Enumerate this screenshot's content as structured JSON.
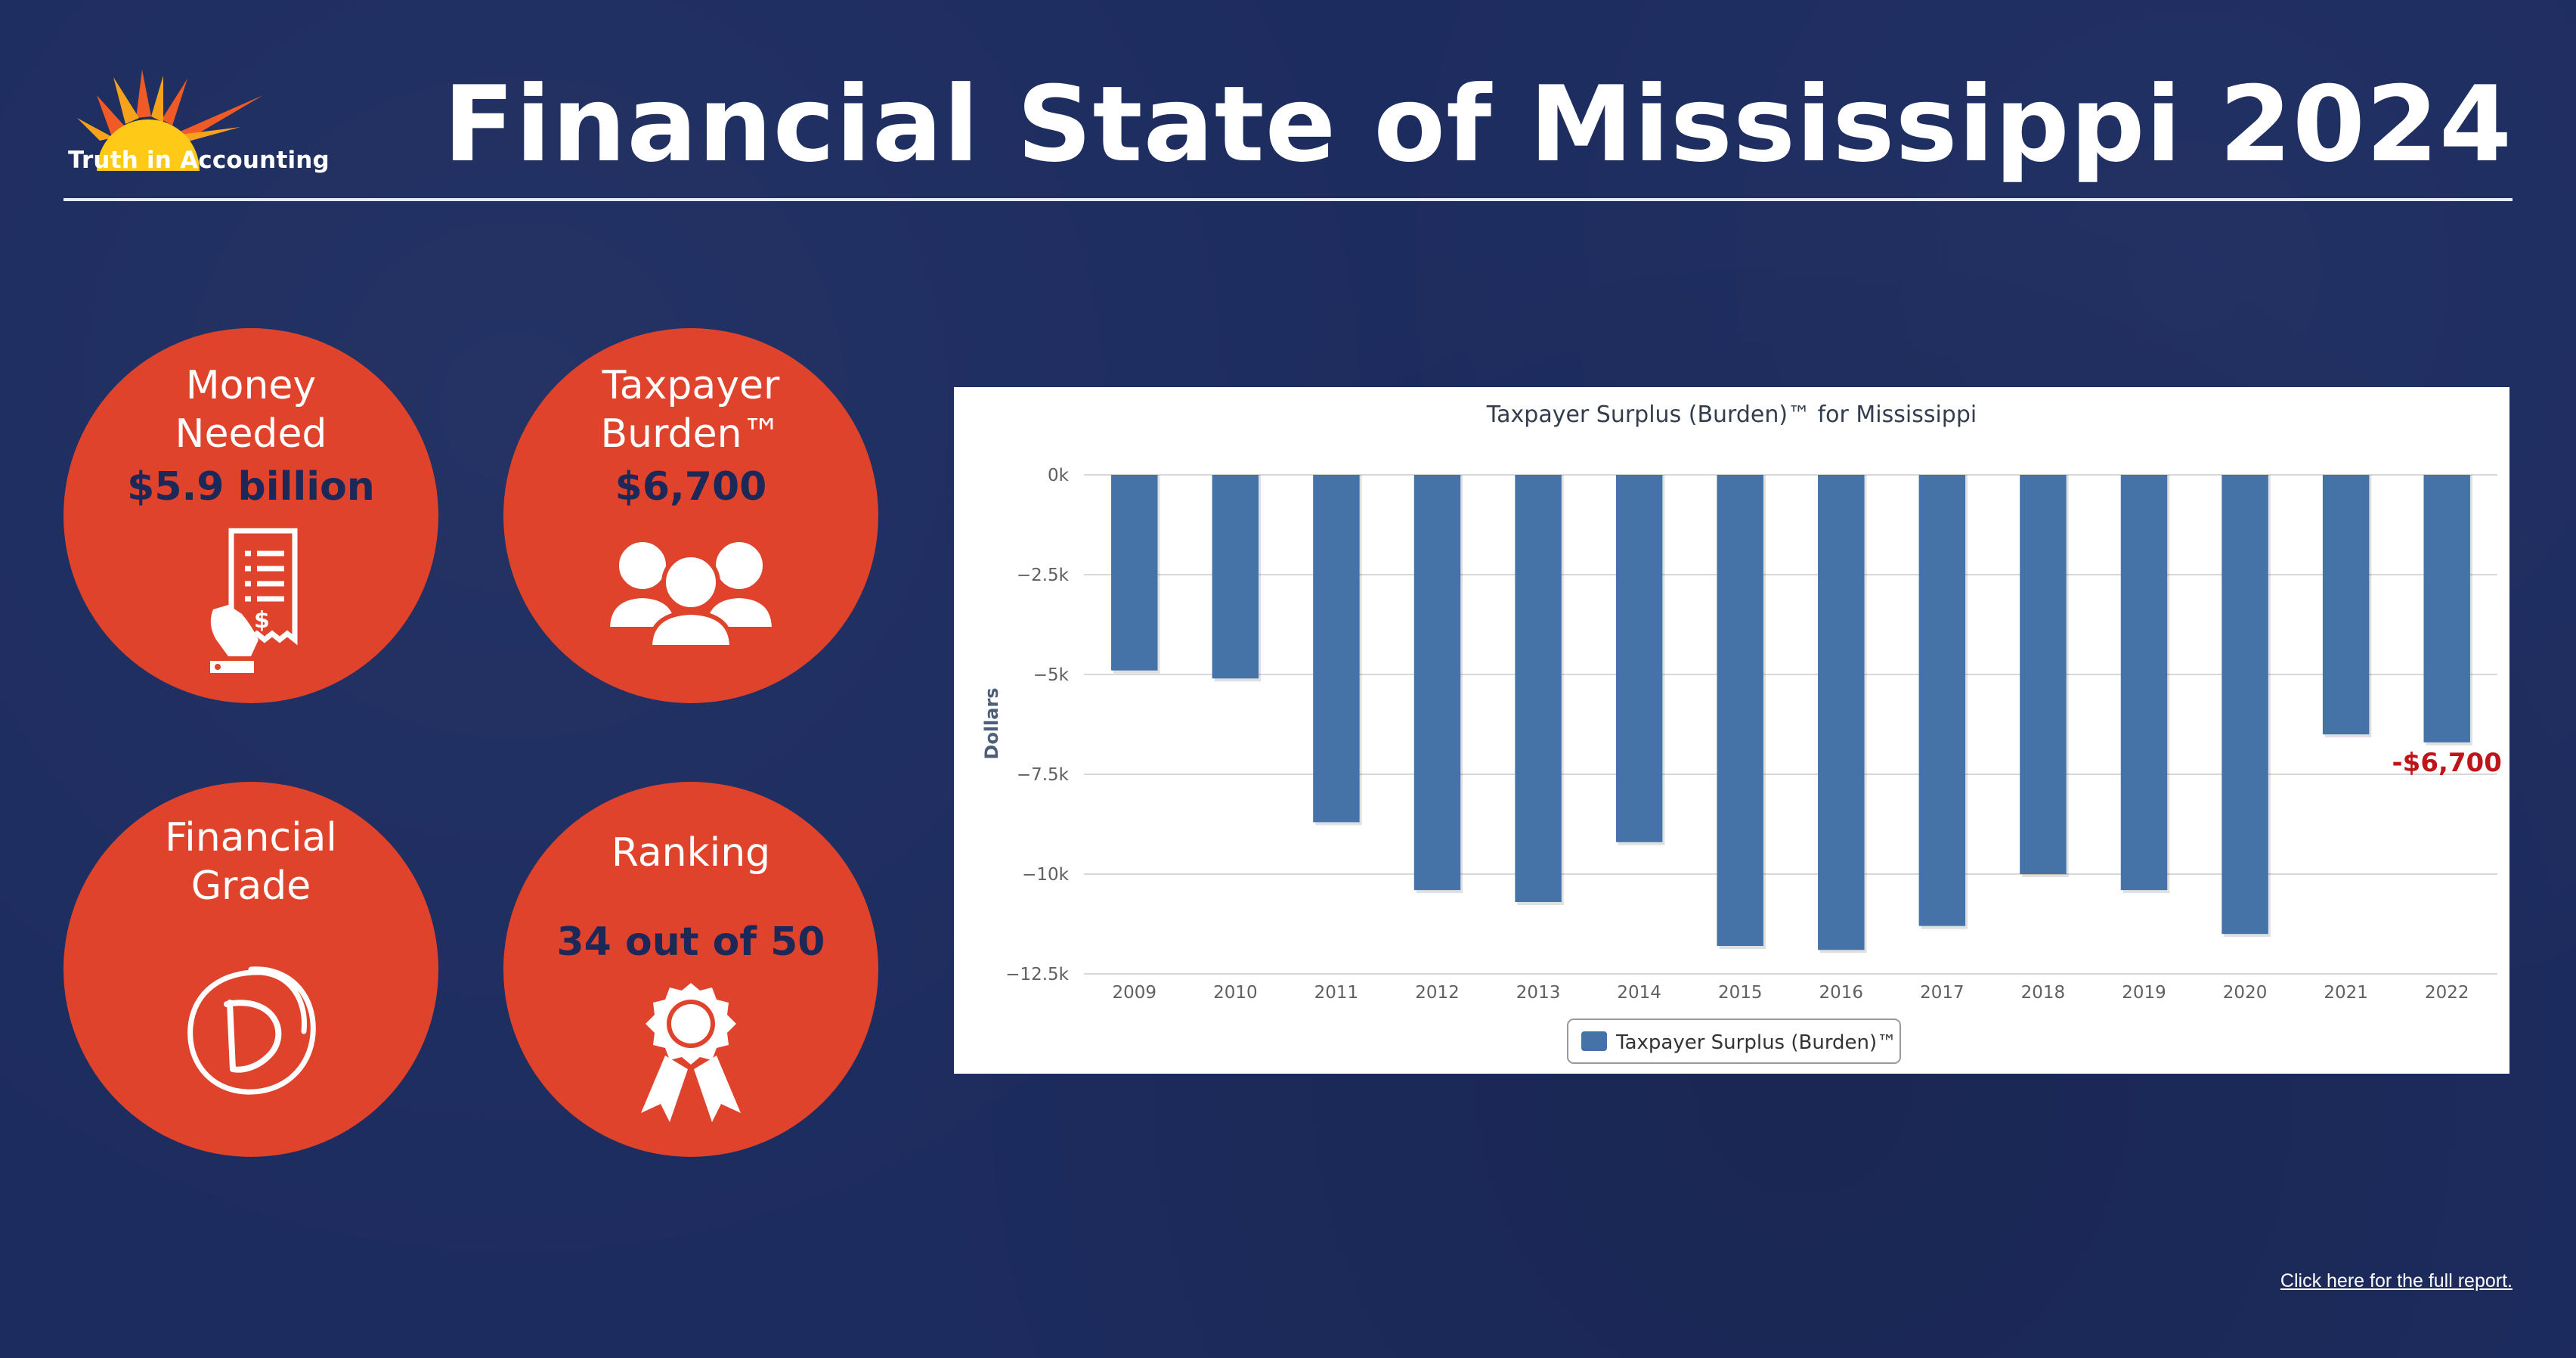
{
  "brand": {
    "name": "Truth in Accounting"
  },
  "header": {
    "title": "Financial State of Mississippi 2024"
  },
  "stats": {
    "money_needed": {
      "label_line1": "Money",
      "label_line2": "Needed",
      "value": "$5.9 billion",
      "icon": "receipt-hand-icon"
    },
    "taxpayer_burden": {
      "label_line1": "Taxpayer",
      "label_line2": "Burden™",
      "value": "$6,700",
      "icon": "people-group-icon"
    },
    "financial_grade": {
      "label_line1": "Financial",
      "label_line2": "Grade",
      "grade": "D",
      "icon": "grade-circle-icon"
    },
    "ranking": {
      "label": "Ranking",
      "value": "34 out of 50",
      "icon": "ribbon-award-icon"
    }
  },
  "colors": {
    "background": "#1d2c5f",
    "circle": "#e0432b",
    "bar": "#4572a7",
    "highlight": "#c0141b",
    "value_text": "#1c2858"
  },
  "chart_data": {
    "type": "bar",
    "title": "Taxpayer Surplus (Burden)™ for Mississippi",
    "xlabel": "",
    "ylabel": "Dollars",
    "categories": [
      "2009",
      "2010",
      "2011",
      "2012",
      "2013",
      "2014",
      "2015",
      "2016",
      "2017",
      "2018",
      "2019",
      "2020",
      "2021",
      "2022"
    ],
    "series": [
      {
        "name": "Taxpayer Surplus (Burden)™",
        "values": [
          -4900,
          -5100,
          -8700,
          -10400,
          -10700,
          -9200,
          -11800,
          -11900,
          -11300,
          -10000,
          -10400,
          -11500,
          -6500,
          -6700
        ]
      }
    ],
    "ylim": [
      -12500,
      0
    ],
    "yticks": [
      0,
      -2500,
      -5000,
      -7500,
      -10000,
      -12500
    ],
    "ytick_labels": [
      "0k",
      "−2.5k",
      "−5k",
      "−7.5k",
      "−10k",
      "−12.5k"
    ],
    "annotation": {
      "category": "2022",
      "text": "-$6,700"
    },
    "grid": true,
    "legend": "bottom-center"
  },
  "footer": {
    "link_text": "Click here for the full report."
  }
}
